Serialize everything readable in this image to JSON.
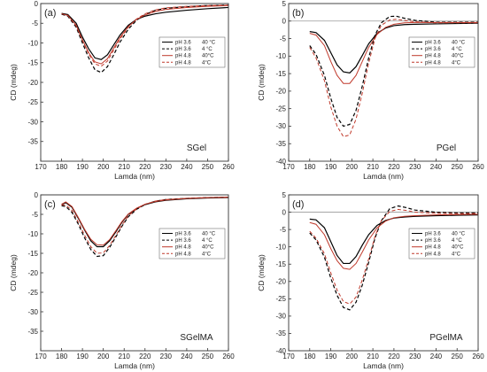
{
  "chart_data": [
    {
      "type": "line",
      "panel_label": "(a)",
      "sample": "SGel",
      "xlabel": "Lamda (nm)",
      "ylabel": "CD (mdeg)",
      "xlim": [
        170,
        260
      ],
      "ylim": [
        -40,
        0
      ],
      "xticks": [
        "170",
        "180",
        "190",
        "200",
        "210",
        "220",
        "230",
        "240",
        "250",
        "260"
      ],
      "yticks": [
        "0",
        "-5",
        "-10",
        "-15",
        "-20",
        "-25",
        "-30",
        "-35"
      ],
      "legend_position": "upper-right",
      "series": [
        {
          "name": "pH 3.6 40 °C",
          "color": "#000000",
          "dash": "solid",
          "x": [
            180,
            183,
            187,
            190,
            193,
            196,
            199,
            202,
            205,
            208,
            212,
            216,
            220,
            225,
            230,
            240,
            250,
            260
          ],
          "y": [
            -2.5,
            -2.8,
            -5.0,
            -8.5,
            -11.5,
            -13.8,
            -14.2,
            -13.0,
            -10.5,
            -8.0,
            -5.5,
            -4.0,
            -3.2,
            -2.6,
            -2.2,
            -1.7,
            -1.3,
            -1.0
          ]
        },
        {
          "name": "pH 3.6 4 °C",
          "color": "#000000",
          "dash": "dashed",
          "x": [
            180,
            183,
            187,
            190,
            193,
            196,
            199,
            202,
            205,
            208,
            212,
            216,
            220,
            225,
            230,
            240,
            250,
            260
          ],
          "y": [
            -2.7,
            -3.2,
            -6.0,
            -10.0,
            -13.8,
            -16.8,
            -17.5,
            -16.0,
            -13.0,
            -9.8,
            -6.5,
            -4.2,
            -2.8,
            -1.7,
            -1.2,
            -0.8,
            -0.5,
            -0.4
          ]
        },
        {
          "name": "pH 4.8 40°C",
          "color": "#c0392b",
          "dash": "solid",
          "x": [
            180,
            183,
            187,
            190,
            193,
            196,
            199,
            202,
            205,
            208,
            212,
            216,
            220,
            225,
            230,
            240,
            250,
            260
          ],
          "y": [
            -2.6,
            -3.0,
            -5.5,
            -9.2,
            -12.5,
            -14.8,
            -15.3,
            -14.0,
            -11.3,
            -8.6,
            -5.8,
            -4.0,
            -2.9,
            -2.0,
            -1.5,
            -1.0,
            -0.7,
            -0.5
          ]
        },
        {
          "name": "pH 4.8 4°C",
          "color": "#c0392b",
          "dash": "dashed",
          "x": [
            180,
            183,
            187,
            190,
            193,
            196,
            199,
            202,
            205,
            208,
            212,
            216,
            220,
            225,
            230,
            240,
            250,
            260
          ],
          "y": [
            -2.6,
            -3.0,
            -5.7,
            -9.4,
            -12.8,
            -15.3,
            -15.9,
            -14.6,
            -11.8,
            -9.0,
            -6.0,
            -3.9,
            -2.6,
            -1.6,
            -1.1,
            -0.7,
            -0.5,
            -0.4
          ]
        }
      ]
    },
    {
      "type": "line",
      "panel_label": "(b)",
      "sample": "PGel",
      "xlabel": "Lamda (nm)",
      "ylabel": "CD (mdeg)",
      "xlim": [
        170,
        260
      ],
      "ylim": [
        -40,
        5
      ],
      "xticks": [
        "170",
        "180",
        "190",
        "200",
        "210",
        "220",
        "230",
        "240",
        "250",
        "260"
      ],
      "yticks": [
        "5",
        "0",
        "-5",
        "-10",
        "-15",
        "-20",
        "-25",
        "-30",
        "-35",
        "-40"
      ],
      "legend_position": "upper-right",
      "series": [
        {
          "name": "pH 3.6 40 °C",
          "color": "#000000",
          "dash": "solid",
          "x": [
            180,
            183,
            187,
            190,
            193,
            196,
            199,
            202,
            205,
            208,
            212,
            216,
            220,
            225,
            230,
            240,
            250,
            260
          ],
          "y": [
            -3.0,
            -3.3,
            -5.5,
            -9.0,
            -12.5,
            -14.5,
            -14.8,
            -13.0,
            -9.8,
            -6.5,
            -3.5,
            -2.0,
            -1.3,
            -1.0,
            -0.9,
            -0.8,
            -0.7,
            -0.6
          ]
        },
        {
          "name": "pH 3.6 4 °C",
          "color": "#000000",
          "dash": "dashed",
          "x": [
            180,
            183,
            187,
            190,
            193,
            196,
            199,
            202,
            205,
            208,
            211,
            214,
            218,
            221,
            225,
            230,
            240,
            250,
            260
          ],
          "y": [
            -7.0,
            -9.5,
            -15.5,
            -22.0,
            -27.5,
            -30.0,
            -29.5,
            -25.5,
            -18.5,
            -10.5,
            -4.0,
            -0.5,
            1.3,
            1.4,
            0.8,
            0.2,
            -0.3,
            -0.3,
            -0.3
          ]
        },
        {
          "name": "pH 4.8 40°C",
          "color": "#c0392b",
          "dash": "solid",
          "x": [
            180,
            183,
            187,
            190,
            193,
            196,
            199,
            202,
            205,
            208,
            212,
            216,
            220,
            225,
            230,
            240,
            250,
            260
          ],
          "y": [
            -3.5,
            -4.0,
            -7.0,
            -11.5,
            -15.5,
            -17.8,
            -17.8,
            -15.5,
            -11.5,
            -7.5,
            -3.8,
            -1.8,
            -0.9,
            -0.5,
            -0.4,
            -0.4,
            -0.4,
            -0.4
          ]
        },
        {
          "name": "pH 4.8 4°C",
          "color": "#c0392b",
          "dash": "dashed",
          "x": [
            180,
            183,
            187,
            190,
            193,
            196,
            199,
            202,
            205,
            208,
            211,
            214,
            218,
            221,
            225,
            230,
            240,
            250,
            260
          ],
          "y": [
            -7.5,
            -10.5,
            -17.0,
            -24.5,
            -30.0,
            -33.0,
            -32.5,
            -28.0,
            -20.5,
            -12.0,
            -5.0,
            -1.2,
            0.3,
            0.5,
            0.2,
            -0.2,
            -0.5,
            -0.5,
            -0.5
          ]
        }
      ]
    },
    {
      "type": "line",
      "panel_label": "(c)",
      "sample": "SGelMA",
      "xlabel": "Lamda (nm)",
      "ylabel": "CD (mdeg)",
      "xlim": [
        170,
        260
      ],
      "ylim": [
        -40,
        0
      ],
      "xticks": [
        "170",
        "180",
        "190",
        "200",
        "210",
        "220",
        "230",
        "240",
        "250",
        "260"
      ],
      "yticks": [
        "0",
        "-5",
        "-10",
        "-15",
        "-20",
        "-25",
        "-30",
        "-35"
      ],
      "legend_position": "upper-right",
      "series": [
        {
          "name": "pH 3.6 40 °C",
          "color": "#000000",
          "dash": "solid",
          "x": [
            180,
            182,
            185,
            188,
            191,
            194,
            197,
            200,
            203,
            206,
            209,
            212,
            216,
            220,
            225,
            230,
            240,
            250,
            260
          ],
          "y": [
            -2.5,
            -2.0,
            -3.2,
            -6.0,
            -9.0,
            -11.8,
            -13.3,
            -13.3,
            -11.8,
            -9.5,
            -7.0,
            -5.0,
            -3.5,
            -2.5,
            -1.8,
            -1.4,
            -1.0,
            -0.8,
            -0.7
          ]
        },
        {
          "name": "pH 3.6 4 °C",
          "color": "#000000",
          "dash": "dashed",
          "x": [
            180,
            182,
            185,
            188,
            191,
            194,
            197,
            200,
            203,
            206,
            209,
            212,
            216,
            220,
            225,
            230,
            240,
            250,
            260
          ],
          "y": [
            -2.8,
            -3.0,
            -4.5,
            -7.5,
            -11.0,
            -14.0,
            -15.8,
            -15.6,
            -13.5,
            -10.8,
            -8.0,
            -5.6,
            -3.7,
            -2.5,
            -1.6,
            -1.2,
            -0.9,
            -0.7,
            -0.6
          ]
        },
        {
          "name": "pH 4.8 40°C",
          "color": "#c0392b",
          "dash": "solid",
          "x": [
            180,
            182,
            185,
            188,
            191,
            194,
            197,
            200,
            203,
            206,
            209,
            212,
            216,
            220,
            225,
            230,
            240,
            250,
            260
          ],
          "y": [
            -2.4,
            -1.8,
            -3.0,
            -5.8,
            -8.8,
            -11.4,
            -12.8,
            -12.9,
            -11.5,
            -9.2,
            -6.8,
            -4.9,
            -3.4,
            -2.4,
            -1.7,
            -1.3,
            -0.9,
            -0.7,
            -0.6
          ]
        },
        {
          "name": "pH 4.8 4°C",
          "color": "#c0392b",
          "dash": "dashed",
          "x": [
            180,
            182,
            185,
            188,
            191,
            194,
            197,
            200,
            203,
            206,
            209,
            212,
            216,
            220,
            225,
            230,
            240,
            250,
            260
          ],
          "y": [
            -2.6,
            -2.6,
            -4.0,
            -7.0,
            -10.3,
            -13.3,
            -15.0,
            -14.9,
            -13.0,
            -10.4,
            -7.7,
            -5.4,
            -3.6,
            -2.4,
            -1.6,
            -1.2,
            -0.9,
            -0.7,
            -0.6
          ]
        }
      ]
    },
    {
      "type": "line",
      "panel_label": "(d)",
      "sample": "PGelMA",
      "xlabel": "Lamda (nm)",
      "ylabel": "CD (mdeg)",
      "xlim": [
        170,
        260
      ],
      "ylim": [
        -40,
        5
      ],
      "xticks": [
        "170",
        "180",
        "190",
        "200",
        "210",
        "220",
        "230",
        "240",
        "250",
        "260"
      ],
      "yticks": [
        "5",
        "0",
        "-5",
        "-10",
        "-15",
        "-20",
        "-25",
        "-30",
        "-35",
        "-40"
      ],
      "legend_position": "upper-right",
      "series": [
        {
          "name": "pH 3.6 40 °C",
          "color": "#000000",
          "dash": "solid",
          "x": [
            180,
            183,
            187,
            190,
            193,
            196,
            199,
            202,
            205,
            208,
            212,
            216,
            220,
            225,
            230,
            240,
            250,
            260
          ],
          "y": [
            -2.0,
            -2.2,
            -4.5,
            -8.5,
            -12.5,
            -14.8,
            -14.8,
            -12.8,
            -9.5,
            -6.5,
            -3.8,
            -2.4,
            -1.7,
            -1.4,
            -1.2,
            -1.0,
            -0.9,
            -0.8
          ]
        },
        {
          "name": "pH 3.6 4 °C",
          "color": "#000000",
          "dash": "dashed",
          "x": [
            180,
            183,
            187,
            190,
            193,
            196,
            199,
            202,
            205,
            208,
            211,
            214,
            218,
            222,
            226,
            230,
            240,
            250,
            260
          ],
          "y": [
            -6.0,
            -8.0,
            -13.0,
            -19.0,
            -24.0,
            -27.5,
            -28.2,
            -26.0,
            -21.0,
            -14.5,
            -7.5,
            -2.5,
            1.0,
            1.8,
            1.3,
            0.6,
            0.0,
            -0.2,
            -0.2
          ]
        },
        {
          "name": "pH 4.8 40°C",
          "color": "#c0392b",
          "dash": "solid",
          "x": [
            180,
            183,
            187,
            190,
            193,
            196,
            199,
            202,
            205,
            208,
            212,
            216,
            220,
            225,
            230,
            240,
            250,
            260
          ],
          "y": [
            -3.0,
            -3.5,
            -6.5,
            -10.5,
            -14.0,
            -16.2,
            -16.5,
            -14.8,
            -11.5,
            -8.0,
            -4.5,
            -2.6,
            -1.6,
            -1.2,
            -1.0,
            -0.8,
            -0.7,
            -0.6
          ]
        },
        {
          "name": "pH 4.8 4°C",
          "color": "#c0392b",
          "dash": "dashed",
          "x": [
            180,
            183,
            187,
            190,
            193,
            196,
            199,
            202,
            205,
            208,
            211,
            214,
            218,
            222,
            226,
            230,
            240,
            250,
            260
          ],
          "y": [
            -5.5,
            -7.5,
            -12.0,
            -17.5,
            -22.5,
            -25.8,
            -26.5,
            -24.5,
            -19.5,
            -13.5,
            -7.0,
            -2.5,
            0.2,
            0.8,
            0.5,
            0.0,
            -0.3,
            -0.4,
            -0.4
          ]
        }
      ]
    }
  ]
}
